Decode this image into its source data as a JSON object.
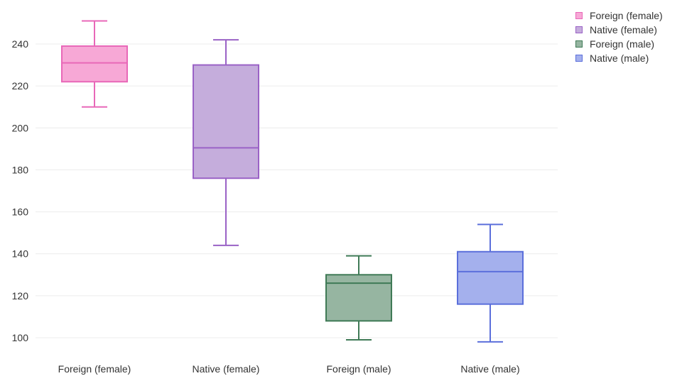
{
  "chart_data": {
    "type": "box",
    "categories": [
      "Foreign (female)",
      "Native (female)",
      "Foreign (male)",
      "Native (male)"
    ],
    "series": [
      {
        "name": "Foreign (female)",
        "min": 210,
        "q1": 222,
        "median": 231,
        "q3": 239,
        "max": 251,
        "fill": "#f7a8d6",
        "stroke": "#e868b8"
      },
      {
        "name": "Native (female)",
        "min": 144,
        "q1": 176,
        "median": 190.5,
        "q3": 230,
        "max": 242,
        "fill": "#c5addc",
        "stroke": "#9a62c6"
      },
      {
        "name": "Foreign (male)",
        "min": 99,
        "q1": 108,
        "median": 126,
        "q3": 130,
        "max": 139,
        "fill": "#96b5a1",
        "stroke": "#3f7a56"
      },
      {
        "name": "Native (male)",
        "min": 98,
        "q1": 116,
        "median": 131.5,
        "q3": 141,
        "max": 154,
        "fill": "#a4b0ed",
        "stroke": "#5b6fdb"
      }
    ],
    "y_ticks": [
      100,
      120,
      140,
      160,
      180,
      200,
      220,
      240
    ],
    "ylim": [
      96,
      254
    ],
    "grid": true,
    "legend_position": "top-right"
  }
}
